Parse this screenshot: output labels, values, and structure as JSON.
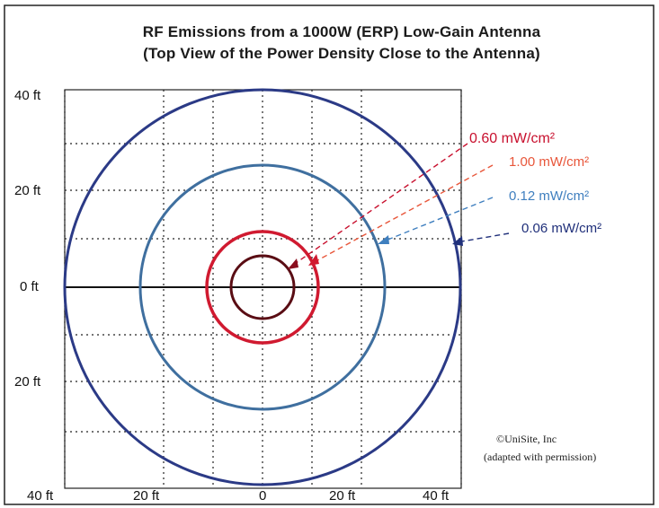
{
  "title_line1": "RF Emissions from a 1000W (ERP) Low-Gain Antenna",
  "title_line2": "(Top View of the Power Density Close to the Antenna)",
  "y_ticks": [
    "40 ft",
    "20 ft",
    "0 ft",
    "20 ft"
  ],
  "x_ticks": [
    "40 ft",
    "20 ft",
    "0",
    "20 ft",
    "40 ft"
  ],
  "contours": [
    {
      "label": "0.60 mW/cm²",
      "color": "#c8102e"
    },
    {
      "label": "1.00 mW/cm²",
      "color": "#e8563a"
    },
    {
      "label": "0.12 mW/cm²",
      "color": "#3f7fbf"
    },
    {
      "label": "0.06 mW/cm²",
      "color": "#1f2f7a"
    }
  ],
  "credit_line1": "©UniSite, Inc",
  "credit_line2": "(adapted with permission)",
  "colors": {
    "frame": "#222222",
    "grid": "#222222",
    "outer_ring": "#2b3a86",
    "middle_ring": "#3f6f9f",
    "inner_red_ring": "#d01a30",
    "innermost_ring": "#5a0d14"
  }
}
